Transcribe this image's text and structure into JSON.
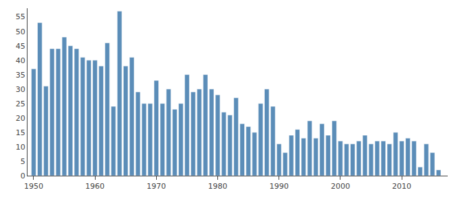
{
  "chart_data": {
    "type": "bar",
    "x": [
      1950,
      1951,
      1952,
      1953,
      1954,
      1955,
      1956,
      1957,
      1958,
      1959,
      1960,
      1961,
      1962,
      1963,
      1964,
      1965,
      1966,
      1967,
      1968,
      1969,
      1970,
      1971,
      1972,
      1973,
      1974,
      1975,
      1976,
      1977,
      1978,
      1979,
      1980,
      1981,
      1982,
      1983,
      1984,
      1985,
      1986,
      1987,
      1988,
      1989,
      1990,
      1991,
      1992,
      1993,
      1994,
      1995,
      1996,
      1997,
      1998,
      1999,
      2000,
      2001,
      2002,
      2003,
      2004,
      2005,
      2006,
      2007,
      2008,
      2009,
      2010,
      2011,
      2012,
      2013,
      2014,
      2015,
      2016
    ],
    "values": [
      37,
      53,
      31,
      44,
      44,
      48,
      45,
      44,
      41,
      40,
      40,
      38,
      46,
      24,
      57,
      38,
      41,
      29,
      25,
      25,
      33,
      25,
      30,
      23,
      25,
      35,
      29,
      30,
      35,
      30,
      28,
      22,
      21,
      27,
      18,
      17,
      15,
      25,
      30,
      24,
      11,
      8,
      14,
      16,
      13,
      19,
      13,
      18,
      14,
      19,
      12,
      11,
      11,
      12,
      14,
      11,
      12,
      12,
      11,
      15,
      12,
      13,
      12,
      3,
      11,
      8,
      2
    ],
    "color": "#5b8db8",
    "xlim": [
      1949.0,
      2017.5
    ],
    "ylim": [
      0,
      58
    ],
    "xticks": [
      1950,
      1960,
      1970,
      1980,
      1990,
      2000,
      2010
    ],
    "yticks": [
      0,
      5,
      10,
      15,
      20,
      25,
      30,
      35,
      40,
      45,
      50,
      55
    ],
    "grid": false
  }
}
